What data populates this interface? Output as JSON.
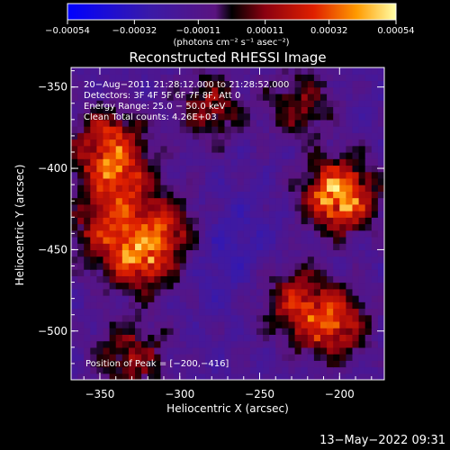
{
  "chart_data": {
    "type": "heatmap",
    "title": "Reconstructed RHESSI Image",
    "xlabel": "Heliocentric X (arcsec)",
    "ylabel": "Heliocentric Y (arcsec)",
    "xlim": [
      -368,
      -172
    ],
    "ylim": [
      -530,
      -338
    ],
    "x_ticks": [
      -350,
      -300,
      -250,
      -200
    ],
    "y_ticks": [
      -350,
      -400,
      -450,
      -500
    ],
    "colorbar": {
      "range": [
        -0.00054,
        0.00054
      ],
      "tick_values": [
        -0.00054,
        -0.00032,
        -0.00011,
        0.00011,
        0.00032,
        0.00054
      ],
      "tick_labels": [
        "−0.00054",
        "−0.00032",
        "−0.00011",
        "0.00011",
        "0.00032",
        "0.00054"
      ],
      "units": "(photons cm⁻² s⁻¹ asec⁻²)"
    },
    "annotations": [
      "20−Aug−2011 21:28:12.000 to 21:28:52.000",
      "Detectors: 3F 4F 5F 6F 7F 8F, Att 0",
      "Energy Range: 25.0 − 50.0 keV",
      "Clean     Total counts: 4.26E+03"
    ],
    "peak": {
      "x": -200,
      "y": -416,
      "label": "Position of Peak = [−200,−416]"
    },
    "hot_regions": [
      {
        "x": -345,
        "y": -385,
        "level": 0.35
      },
      {
        "x": -338,
        "y": -410,
        "level": 0.3
      },
      {
        "x": -325,
        "y": -455,
        "level": 0.35
      },
      {
        "x": -308,
        "y": -438,
        "level": 0.25
      },
      {
        "x": -348,
        "y": -440,
        "level": 0.2
      },
      {
        "x": -200,
        "y": -416,
        "level": 0.54
      },
      {
        "x": -205,
        "y": -495,
        "level": 0.38
      },
      {
        "x": -230,
        "y": -480,
        "level": 0.22
      },
      {
        "x": -282,
        "y": -362,
        "level": 0.2
      },
      {
        "x": -225,
        "y": -360,
        "level": 0.18
      },
      {
        "x": -330,
        "y": -515,
        "level": 0.22
      }
    ]
  },
  "footer": {
    "timestamp": "13−May−2022 09:31"
  }
}
